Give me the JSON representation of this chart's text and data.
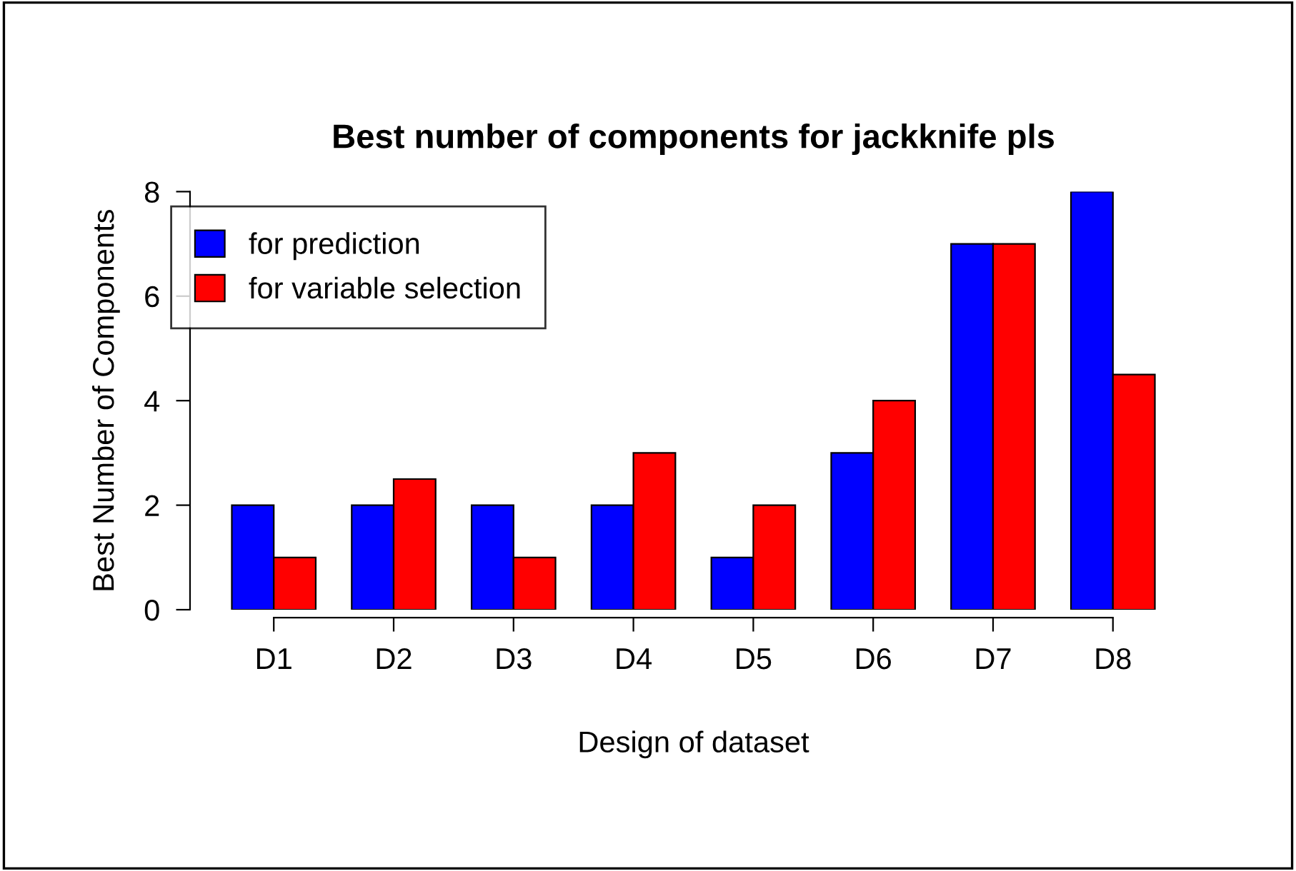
{
  "chart_data": {
    "type": "bar",
    "title": "Best number of components for jackknife pls",
    "xlabel": "Design of dataset",
    "ylabel": "Best Number of Components",
    "categories": [
      "D1",
      "D2",
      "D3",
      "D4",
      "D5",
      "D6",
      "D7",
      "D8"
    ],
    "series": [
      {
        "name": "for prediction",
        "color": "#0000ff",
        "values": [
          2,
          2,
          2,
          2,
          1,
          3,
          7,
          8
        ]
      },
      {
        "name": "for variable selection",
        "color": "#ff0000",
        "values": [
          1,
          2.5,
          1,
          3,
          2,
          4,
          7,
          4.5
        ]
      }
    ],
    "ylim": [
      0,
      8
    ],
    "yticks": [
      0,
      2,
      4,
      6,
      8
    ],
    "grid": false,
    "legend": "top left"
  }
}
